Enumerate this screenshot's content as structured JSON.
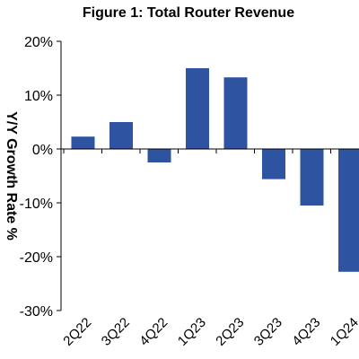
{
  "chart_data": {
    "type": "bar",
    "title": "Figure 1: Total Router Revenue",
    "ylabel": "Y/Y Growth Rate %",
    "xlabel": "",
    "categories": [
      "2Q22",
      "3Q22",
      "4Q22",
      "1Q23",
      "2Q23",
      "3Q23",
      "4Q23",
      "1Q24"
    ],
    "values": [
      2.3,
      5.0,
      -2.5,
      15.0,
      13.3,
      -5.6,
      -10.5,
      -22.8
    ],
    "ylim": [
      -30,
      20
    ],
    "yticks": [
      -30,
      -20,
      -10,
      0,
      10,
      20
    ],
    "ytick_labels": [
      "-30%",
      "-20%",
      "-10%",
      "0%",
      "10%",
      "20%"
    ],
    "grid": false,
    "legend": "none",
    "bar_color": "#2E54A1"
  }
}
